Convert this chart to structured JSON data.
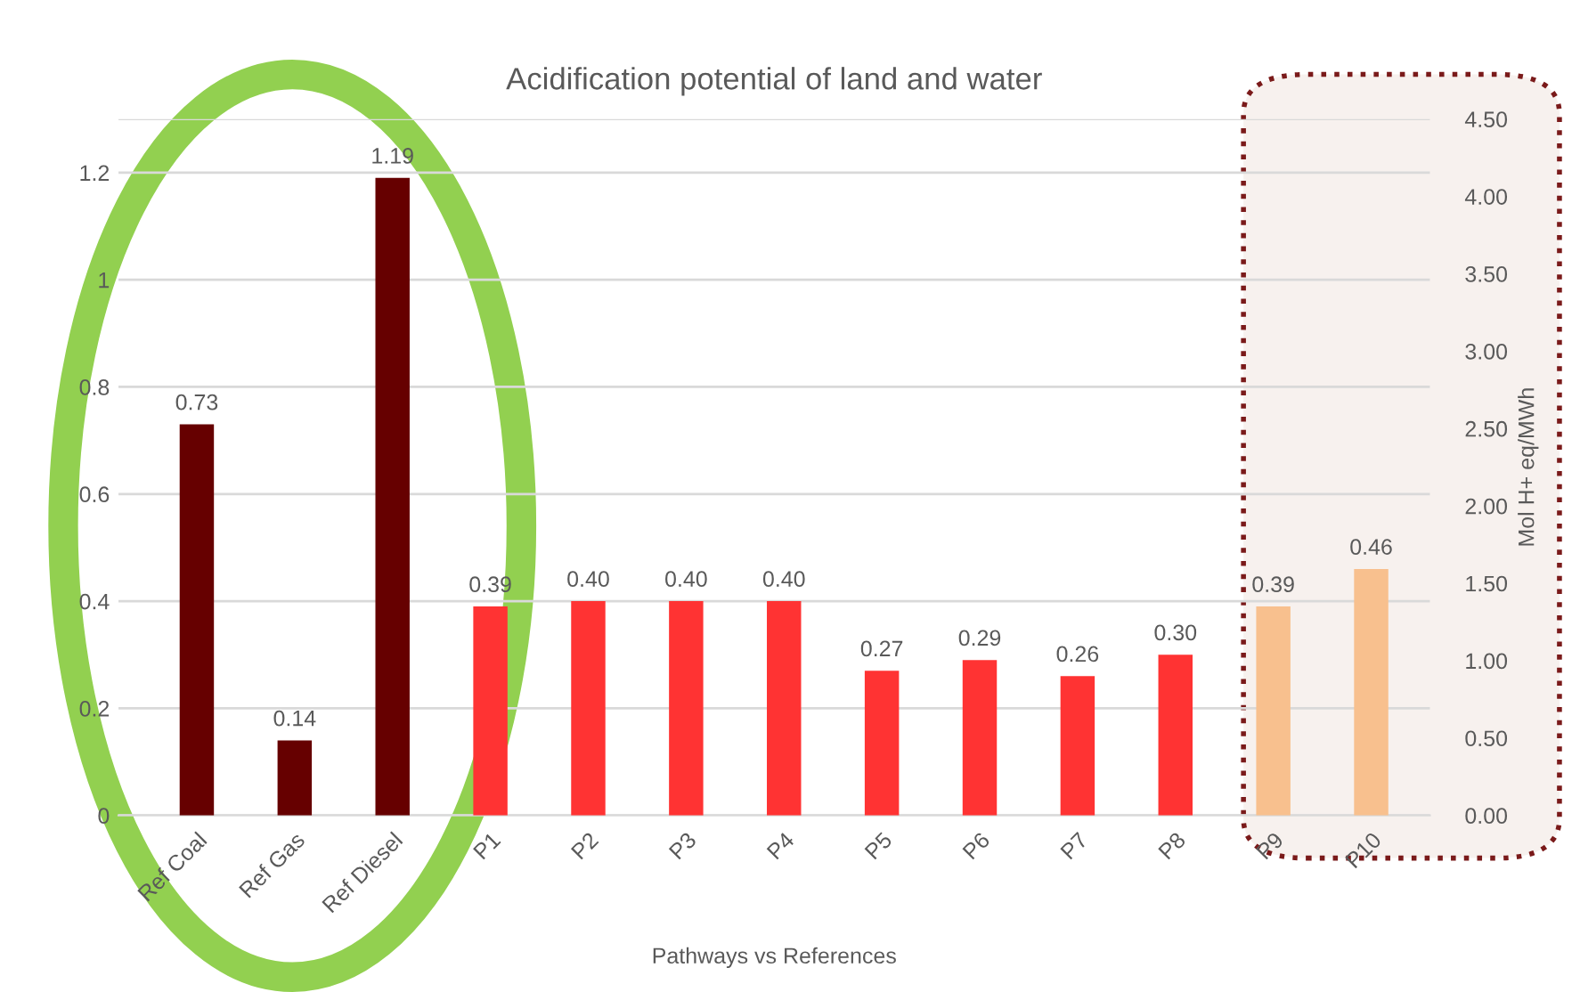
{
  "chart_data": {
    "type": "bar",
    "title": "Acidification potential of land and water",
    "xlabel": "Pathways vs References",
    "y2label": "Mol H+ eq/MWh",
    "categories": [
      "Ref Coal",
      "Ref Gas",
      "Ref Diesel",
      "P1",
      "P2",
      "P3",
      "P4",
      "P5",
      "P6",
      "P7",
      "P8",
      "P9",
      "P10"
    ],
    "values": [
      0.73,
      0.14,
      1.19,
      0.39,
      0.4,
      0.4,
      0.4,
      0.27,
      0.29,
      0.26,
      0.3,
      0.39,
      0.46
    ],
    "colors": [
      "#660000",
      "#660000",
      "#660000",
      "#ff3333",
      "#ff3333",
      "#ff3333",
      "#ff3333",
      "#ff3333",
      "#ff3333",
      "#ff3333",
      "#ff3333",
      "#f8c08e",
      "#f8c08e"
    ],
    "value_labels": [
      "0.73",
      "0.14",
      "1.19",
      "0.39",
      "0.40",
      "0.40",
      "0.40",
      "0.27",
      "0.29",
      "0.26",
      "0.30",
      "0.39",
      "0.46"
    ],
    "ylim": [
      0,
      1.3
    ],
    "yticks": [
      0,
      0.2,
      0.4,
      0.6,
      0.8,
      1,
      1.2,
      {
        "value": 1.3,
        "label": null
      }
    ],
    "y2lim": [
      0,
      4.5
    ],
    "y2ticks": [
      {
        "value": 0,
        "label": "0.00"
      },
      {
        "value": 0.5,
        "label": "0.50"
      },
      {
        "value": 1,
        "label": "1.00"
      },
      {
        "value": 1.5,
        "label": "1.50"
      },
      {
        "value": 2,
        "label": "2.00"
      },
      {
        "value": 2.5,
        "label": "2.50"
      },
      {
        "value": 3,
        "label": "3.00"
      },
      {
        "value": 3.5,
        "label": "3.50"
      },
      {
        "value": 4,
        "label": "4.00"
      },
      {
        "value": 4.5,
        "label": "4.50"
      }
    ],
    "grid": "y"
  }
}
